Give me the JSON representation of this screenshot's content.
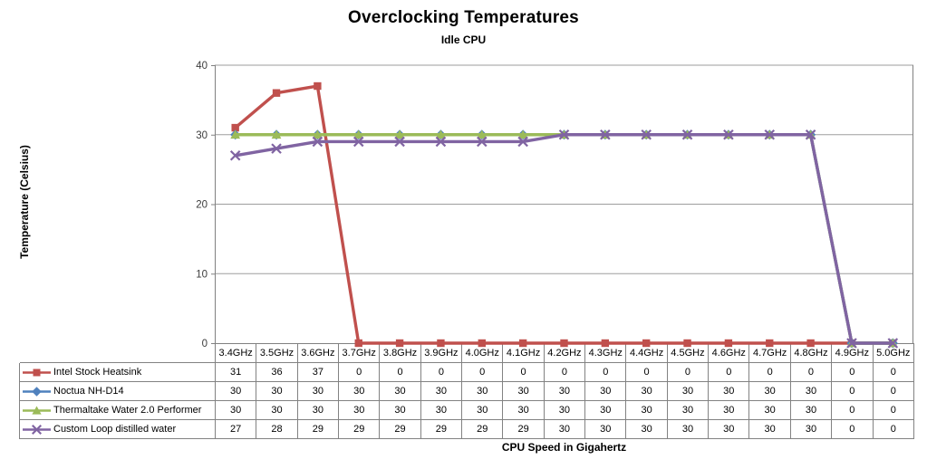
{
  "title": "Overclocking Temperatures",
  "subtitle": "Idle CPU",
  "chart_data": {
    "type": "line",
    "title": "Overclocking Temperatures",
    "subtitle": "Idle CPU",
    "xlabel": "CPU Speed in Gigahertz",
    "ylabel": "Temperature (Celsius)",
    "ylim": [
      0,
      40
    ],
    "yticks": [
      0,
      10,
      20,
      30,
      40
    ],
    "grid": true,
    "legend_position": "table-left",
    "grid_color": "#9d9d9d",
    "axis_color": "#808080",
    "tick_label_color": "#3b3b3b",
    "categories": [
      "3.4GHz",
      "3.5GHz",
      "3.6GHz",
      "3.7GHz",
      "3.8GHz",
      "3.9GHz",
      "4.0GHz",
      "4.1GHz",
      "4.2GHz",
      "4.3GHz",
      "4.4GHz",
      "4.5GHz",
      "4.6GHz",
      "4.7GHz",
      "4.8GHz",
      "4.9GHz",
      "5.0GHz"
    ],
    "series": [
      {
        "name": "Intel Stock Heatsink",
        "color": "#C0504D",
        "marker": "square",
        "values": [
          31,
          36,
          37,
          0,
          0,
          0,
          0,
          0,
          0,
          0,
          0,
          0,
          0,
          0,
          0,
          0,
          0
        ]
      },
      {
        "name": "Noctua NH-D14",
        "color": "#4F81BD",
        "marker": "diamond",
        "values": [
          30,
          30,
          30,
          30,
          30,
          30,
          30,
          30,
          30,
          30,
          30,
          30,
          30,
          30,
          30,
          0,
          0
        ]
      },
      {
        "name": "Thermaltake Water 2.0 Performer",
        "color": "#9BBB59",
        "marker": "triangle",
        "values": [
          30,
          30,
          30,
          30,
          30,
          30,
          30,
          30,
          30,
          30,
          30,
          30,
          30,
          30,
          30,
          0,
          0
        ]
      },
      {
        "name": "Custom Loop distilled water",
        "color": "#8064A2",
        "marker": "x",
        "values": [
          27,
          28,
          29,
          29,
          29,
          29,
          29,
          29,
          30,
          30,
          30,
          30,
          30,
          30,
          30,
          0,
          0
        ]
      }
    ]
  }
}
